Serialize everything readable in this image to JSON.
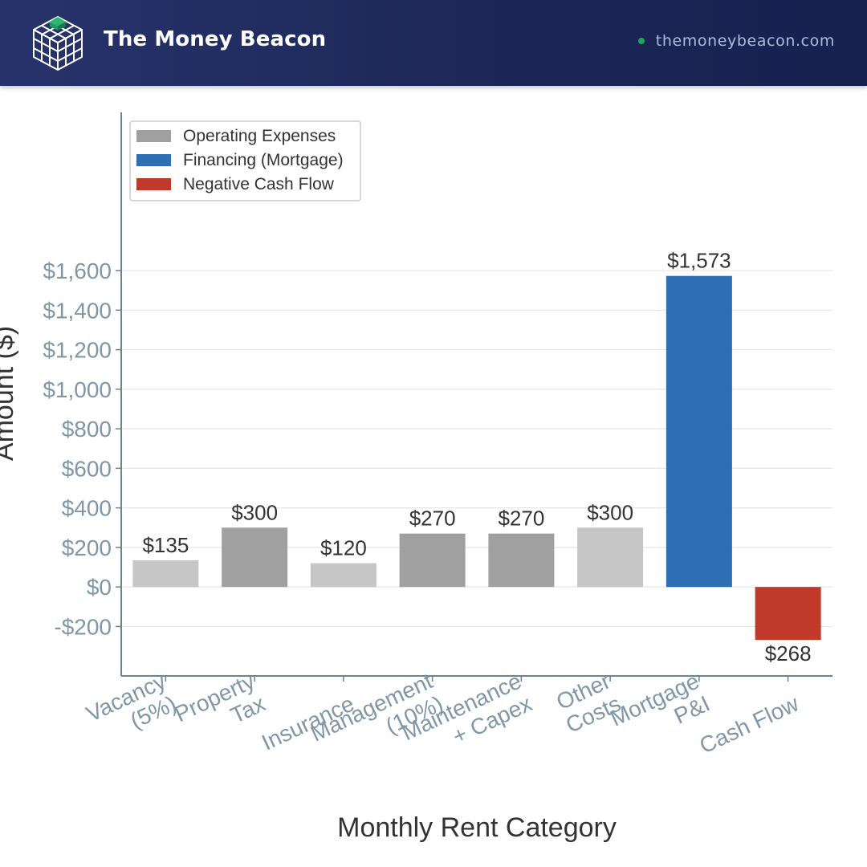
{
  "header": {
    "brand": "The Money Beacon",
    "site": "themoneybeacon.com",
    "colors": {
      "background": "#1d2758",
      "dot": "#1fa65a",
      "link": "#a9bdd9"
    },
    "icons": {
      "logo": "cube-logo-icon",
      "status": "green-dot-icon"
    }
  },
  "chart_data": {
    "type": "bar",
    "title": "",
    "xlabel": "Monthly Rent Category",
    "ylabel": "Amount ($)",
    "ylim": [
      -450,
      2400
    ],
    "yticks": [
      -200,
      0,
      200,
      400,
      600,
      800,
      1000,
      1200,
      1400,
      1600
    ],
    "ytick_labels": [
      "-$200",
      "$0",
      "$200",
      "$400",
      "$600",
      "$800",
      "$1,000",
      "$1,200",
      "$1,400",
      "$1,600"
    ],
    "grid": true,
    "legend_position": "top-left",
    "categories": [
      [
        "Vacancy",
        "(5%)"
      ],
      [
        "Property",
        "Tax"
      ],
      [
        "Insurance"
      ],
      [
        "Management",
        "(10%)"
      ],
      [
        "Maintenance",
        "+ Capex"
      ],
      [
        "Other",
        "Costs"
      ],
      [
        "Mortgage",
        "P&I"
      ],
      [
        "Cash Flow"
      ]
    ],
    "values": [
      135,
      300,
      120,
      270,
      270,
      300,
      1573,
      -268
    ],
    "value_labels": [
      "$135",
      "$300",
      "$120",
      "$270",
      "$270",
      "$300",
      "$1,573",
      "$268"
    ],
    "bar_colors": [
      "#c6c6c6",
      "#a0a0a0",
      "#c6c6c6",
      "#a0a0a0",
      "#a0a0a0",
      "#c6c6c6",
      "#2e6eb3",
      "#c0392b"
    ],
    "legend": [
      {
        "label": "Operating Expenses",
        "color": "#a0a0a0"
      },
      {
        "label": "Financing (Mortgage)",
        "color": "#2e6eb3"
      },
      {
        "label": "Negative Cash Flow",
        "color": "#c0392b"
      }
    ],
    "colors": {
      "axis": "#6c8391",
      "tick_text": "#7f97a6",
      "grid": "#e6e6e6",
      "label_text": "#333333"
    }
  }
}
